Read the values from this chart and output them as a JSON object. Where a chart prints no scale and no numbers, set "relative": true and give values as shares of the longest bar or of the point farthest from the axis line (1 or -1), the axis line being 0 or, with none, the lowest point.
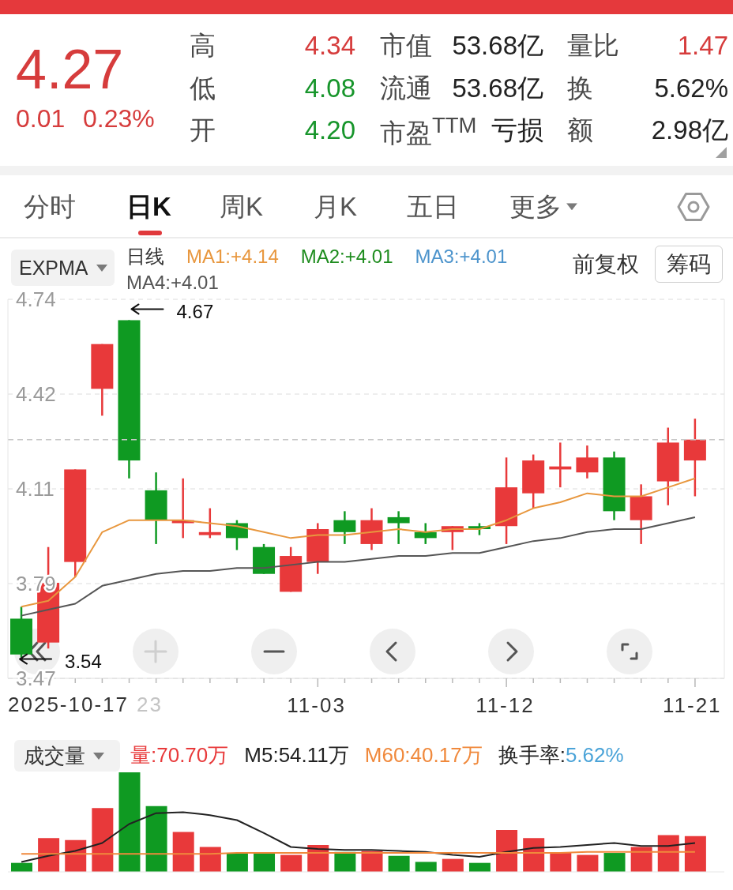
{
  "chart_data": [
    {
      "type": "other",
      "annotations": [
        "4.27",
        "0.01",
        "0.23%",
        "高",
        "4.34",
        "低",
        "4.08",
        "开",
        "4.20",
        "市值",
        "53.68亿",
        "流通",
        "53.68亿",
        "市盈$^{TTM}$",
        "亏损",
        "量比",
        "1.47",
        "换",
        "5.62%",
        "额",
        "2.98亿"
      ]
    },
    {
      "type": "other",
      "annotations": [
        "分时",
        "日K",
        "周K",
        "月K",
        "五日",
        "更多"
      ]
    },
    {
      "type": "candlestick",
      "title": "EXPMA",
      "legend_title": "日线",
      "categories": [
        null,
        null,
        null,
        null,
        null,
        null,
        null,
        null,
        null,
        null,
        null,
        "11-03",
        null,
        null,
        null,
        null,
        null,
        null,
        "11-12",
        null,
        null,
        null,
        null,
        null,
        null,
        "11-21"
      ],
      "ohlc": [
        [
          3.67,
          3.71,
          3.54,
          3.55
        ],
        [
          3.59,
          3.91,
          3.57,
          3.79
        ],
        [
          3.86,
          4.17,
          3.81,
          4.17
        ],
        [
          4.44,
          4.59,
          4.35,
          4.59
        ],
        [
          4.67,
          4.67,
          4.14,
          4.2
        ],
        [
          4.1,
          4.16,
          3.92,
          4.0
        ],
        [
          3.99,
          4.14,
          3.94,
          4.0
        ],
        [
          3.95,
          4.04,
          3.94,
          3.96
        ],
        [
          3.99,
          4.0,
          3.9,
          3.94
        ],
        [
          3.91,
          3.92,
          3.82,
          3.82
        ],
        [
          3.76,
          3.91,
          3.76,
          3.88
        ],
        [
          3.86,
          3.99,
          3.82,
          3.97
        ],
        [
          4.0,
          4.03,
          3.92,
          3.96
        ],
        [
          3.92,
          4.04,
          3.9,
          4.0
        ],
        [
          4.01,
          4.03,
          3.92,
          3.99
        ],
        [
          3.96,
          3.99,
          3.92,
          3.94
        ],
        [
          3.96,
          3.98,
          3.9,
          3.98
        ],
        [
          3.98,
          3.99,
          3.95,
          3.97
        ],
        [
          3.98,
          4.21,
          3.92,
          4.11
        ],
        [
          4.09,
          4.22,
          4.04,
          4.2
        ],
        [
          4.17,
          4.26,
          4.11,
          4.18
        ],
        [
          4.16,
          4.25,
          4.14,
          4.21
        ],
        [
          4.21,
          4.23,
          4.0,
          4.03
        ],
        [
          4.0,
          4.12,
          3.92,
          4.08
        ],
        [
          4.13,
          4.31,
          4.05,
          4.26
        ],
        [
          4.2,
          4.34,
          4.08,
          4.27
        ]
      ],
      "colors": [
        "#0f9a22",
        "#e8393a",
        "#e8393a",
        "#e8393a",
        "#0f9a22",
        "#0f9a22",
        "#e8393a",
        "#e8393a",
        "#0f9a22",
        "#0f9a22",
        "#e8393a",
        "#e8393a",
        "#0f9a22",
        "#e8393a",
        "#0f9a22",
        "#0f9a22",
        "#e8393a",
        "#0f9a22",
        "#e8393a",
        "#e8393a",
        "#e8393a",
        "#e8393a",
        "#0f9a22",
        "#e8393a",
        "#e8393a",
        "#e8393a"
      ],
      "series": [
        {
          "name": "MA1:+4.14",
          "type": "line",
          "color": "#e8973e",
          "values": [
            3.71,
            3.73,
            3.81,
            3.96,
            4.0,
            4.0,
            4.0,
            3.99,
            3.98,
            3.96,
            3.94,
            3.95,
            3.95,
            3.96,
            3.97,
            3.96,
            3.97,
            3.97,
            4.0,
            4.04,
            4.06,
            4.09,
            4.08,
            4.08,
            4.11,
            4.14
          ]
        },
        {
          "name": "MA2:+4.01",
          "type": "line",
          "color": "#1e8c1e",
          "values": [
            null,
            null,
            null,
            null,
            null,
            null,
            null,
            null,
            null,
            null,
            null,
            null,
            null,
            null,
            null,
            null,
            null,
            null,
            null,
            null,
            null,
            null,
            null,
            null,
            null,
            null
          ]
        },
        {
          "name": "MA3:+4.01",
          "type": "line",
          "color": "#4d94cc",
          "values": [
            null,
            null,
            null,
            null,
            null,
            null,
            null,
            null,
            null,
            null,
            null,
            null,
            null,
            null,
            null,
            null,
            null,
            null,
            null,
            null,
            null,
            null,
            null,
            null,
            null,
            null
          ]
        },
        {
          "name": "MA4:+4.01",
          "type": "line",
          "color": "#555555",
          "values": [
            3.68,
            3.7,
            3.72,
            3.78,
            3.8,
            3.82,
            3.83,
            3.83,
            3.84,
            3.84,
            3.85,
            3.86,
            3.86,
            3.87,
            3.88,
            3.88,
            3.89,
            3.89,
            3.91,
            3.93,
            3.94,
            3.96,
            3.97,
            3.97,
            3.99,
            4.01
          ]
        }
      ],
      "ylim": [
        3.47,
        4.74
      ],
      "yticks": [
        3.47,
        {
          "value": 3.7875,
          "label": "3.79"
        },
        {
          "value": 4.105,
          "label": "4.11"
        },
        {
          "value": 4.4225,
          "label": "4.42"
        },
        4.74
      ],
      "grid": "y",
      "legend": "top left",
      "ref_lines": [
        {
          "axis": "y",
          "value": 4.27,
          "color": "#c8c8c8",
          "line_style": "dashed"
        }
      ],
      "annotations": [
        "4.67",
        "3.54",
        "2025-10-17",
        "23",
        "前复权",
        "筹码"
      ]
    },
    {
      "type": "bar",
      "title": "成交量",
      "categories": [
        null,
        null,
        null,
        null,
        null,
        null,
        null,
        null,
        null,
        null,
        null,
        null,
        null,
        null,
        null,
        null,
        null,
        null,
        null,
        null,
        null,
        null,
        null,
        null,
        null,
        null
      ],
      "relative": true,
      "legend": "top left",
      "series": [
        {
          "name": "量:70.70万",
          "type": "bar",
          "color": "#e8393a",
          "colors": [
            "#0f9a22",
            "#e8393a",
            "#e8393a",
            "#e8393a",
            "#0f9a22",
            "#0f9a22",
            "#e8393a",
            "#e8393a",
            "#0f9a22",
            "#0f9a22",
            "#e8393a",
            "#e8393a",
            "#0f9a22",
            "#e8393a",
            "#0f9a22",
            "#0f9a22",
            "#e8393a",
            "#0f9a22",
            "#e8393a",
            "#e8393a",
            "#e8393a",
            "#e8393a",
            "#0f9a22",
            "#e8393a",
            "#e8393a",
            "#e8393a"
          ],
          "values": [
            0.09,
            0.34,
            0.32,
            0.64,
            1,
            0.66,
            0.4,
            0.25,
            0.19,
            0.19,
            0.17,
            0.27,
            0.2,
            0.21,
            0.16,
            0.1,
            0.13,
            0.09,
            0.42,
            0.34,
            0.19,
            0.17,
            0.19,
            0.25,
            0.37,
            0.36
          ]
        },
        {
          "name": "M5:54.11万",
          "type": "line",
          "color": "#222222",
          "values": [
            0.1,
            0.16,
            0.21,
            0.29,
            0.48,
            0.59,
            0.6,
            0.57,
            0.52,
            0.39,
            0.25,
            0.23,
            0.22,
            0.22,
            0.21,
            0.2,
            0.17,
            0.15,
            0.2,
            0.24,
            0.25,
            0.27,
            0.29,
            0.26,
            0.26,
            0.29
          ]
        },
        {
          "name": "M60:40.17万",
          "type": "line",
          "color": "#f0893c",
          "values": [
            0.18,
            0.18,
            0.18,
            0.18,
            0.18,
            0.18,
            0.18,
            0.18,
            0.19,
            0.19,
            0.19,
            0.19,
            0.19,
            0.19,
            0.19,
            0.19,
            0.19,
            0.19,
            0.19,
            0.19,
            0.19,
            0.2,
            0.2,
            0.2,
            0.2,
            0.2
          ]
        }
      ],
      "annotations": [
        "换手率:5.62%"
      ]
    }
  ]
}
